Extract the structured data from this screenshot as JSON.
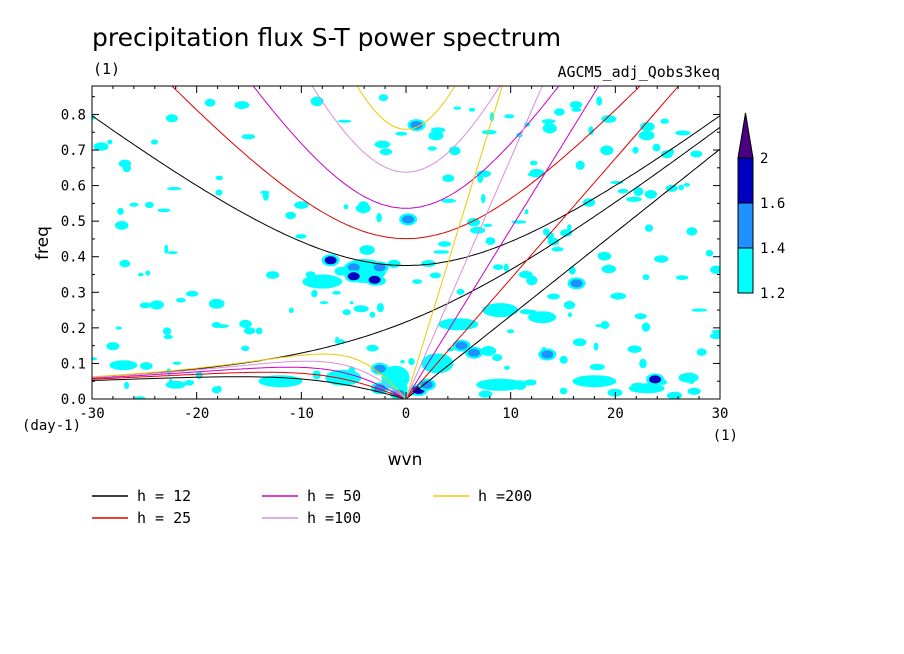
{
  "chart_data": {
    "type": "heatmap",
    "title": "precipitation flux S-T power spectrum",
    "subtitle_left": "(1)",
    "subtitle_right": "AGCM5_adj_Qobs3keq",
    "xlabel": "wvn",
    "ylabel": "freq",
    "x_unit": "(1)",
    "y_unit": "(day-1)",
    "xlim": [
      -30,
      30
    ],
    "ylim": [
      0,
      0.88
    ],
    "x_ticks": [
      -30,
      -20,
      -10,
      0,
      10,
      20,
      30
    ],
    "x_tick_labels": [
      "-30",
      "-20",
      "-10",
      "0",
      "10",
      "20",
      "30"
    ],
    "y_ticks": [
      0,
      0.1,
      0.2,
      0.3,
      0.4,
      0.5,
      0.6,
      0.7,
      0.8
    ],
    "y_tick_labels": [
      "0.0",
      "0.1",
      "0.2",
      "0.3",
      "0.4",
      "0.5",
      "0.6",
      "0.7",
      "0.8"
    ],
    "colorbar": {
      "levels": [
        1.2,
        1.4,
        1.6,
        2
      ],
      "labels": [
        "1.2",
        "1.4",
        "1.6",
        "2"
      ],
      "colors": [
        "#00ffff",
        "#1e90ff",
        "#0000c0",
        "#4b0082"
      ]
    },
    "dispersion_curves": [
      {
        "name": "h = 12",
        "h": 12,
        "color": "#000000"
      },
      {
        "name": "h = 25",
        "h": 25,
        "color": "#e00000"
      },
      {
        "name": "h = 50",
        "h": 50,
        "color": "#c800c8"
      },
      {
        "name": "h =100",
        "h": 100,
        "color": "#dc8cdc"
      },
      {
        "name": "h =200",
        "h": 200,
        "color": "#f0c800"
      }
    ],
    "spectral_peaks": [
      {
        "wvn": -7.2,
        "freq": 0.39,
        "level": 1.6
      },
      {
        "wvn": -5,
        "freq": 0.37,
        "level": 1.4
      },
      {
        "wvn": -5,
        "freq": 0.345,
        "level": 1.6
      },
      {
        "wvn": -3,
        "freq": 0.335,
        "level": 1.6
      },
      {
        "wvn": -2.5,
        "freq": 0.37,
        "level": 1.4
      },
      {
        "wvn": 5.3,
        "freq": 0.15,
        "level": 1.4
      },
      {
        "wvn": 6.5,
        "freq": 0.13,
        "level": 1.4
      },
      {
        "wvn": 1.2,
        "freq": 0.025,
        "level": 1.6
      },
      {
        "wvn": 2.0,
        "freq": 0.04,
        "level": 1.4
      },
      {
        "wvn": -0.7,
        "freq": 0.015,
        "level": 1.4
      },
      {
        "wvn": -2.5,
        "freq": 0.03,
        "level": 1.4
      },
      {
        "wvn": 13.5,
        "freq": 0.125,
        "level": 1.4
      },
      {
        "wvn": 16.3,
        "freq": 0.325,
        "level": 1.4
      },
      {
        "wvn": 23.8,
        "freq": 0.055,
        "level": 1.6
      },
      {
        "wvn": -2.5,
        "freq": 0.085,
        "level": 1.4
      },
      {
        "wvn": 1.0,
        "freq": 0.77,
        "level": 1.4
      },
      {
        "wvn": 0.2,
        "freq": 0.505,
        "level": 1.4
      }
    ]
  }
}
